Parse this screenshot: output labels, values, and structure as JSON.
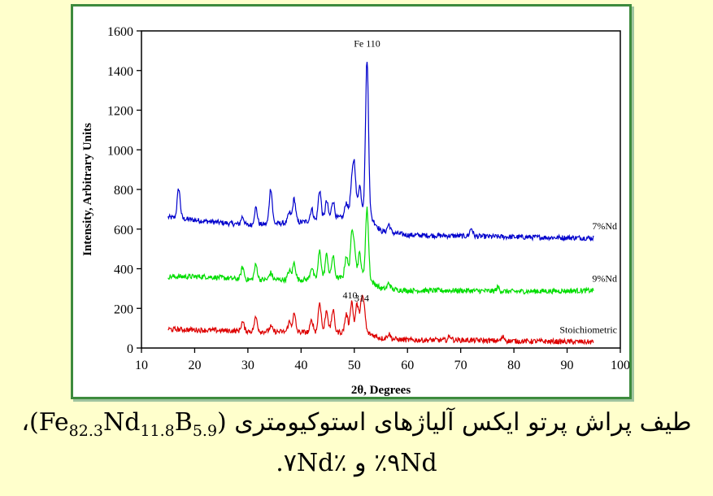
{
  "chart_data": {
    "type": "line",
    "title": "",
    "xlabel": "2θ, Degrees",
    "ylabel": "Intensity, Arbitrary Units",
    "xlim": [
      10,
      100
    ],
    "ylim": [
      0,
      1600
    ],
    "xticks": [
      "10",
      "20",
      "30",
      "40",
      "50",
      "60",
      "70",
      "80",
      "90",
      "100"
    ],
    "yticks": [
      "0",
      "200",
      "400",
      "600",
      "800",
      "1000",
      "1200",
      "1400",
      "1600"
    ],
    "grid": false,
    "series": [
      {
        "name": "7%Nd",
        "color": "#0000cc",
        "baseline": [
          [
            15,
            660
          ],
          [
            22,
            640
          ],
          [
            30,
            620
          ],
          [
            40,
            635
          ],
          [
            48,
            660
          ],
          [
            52,
            700
          ],
          [
            55,
            590
          ],
          [
            60,
            570
          ],
          [
            70,
            565
          ],
          [
            80,
            560
          ],
          [
            95,
            555
          ]
        ],
        "peaks": [
          [
            17,
            150
          ],
          [
            29,
            40
          ],
          [
            31.5,
            85
          ],
          [
            34.3,
            180
          ],
          [
            37.8,
            50
          ],
          [
            38.7,
            120
          ],
          [
            42,
            60
          ],
          [
            43.5,
            150
          ],
          [
            44.8,
            90
          ],
          [
            46,
            90
          ],
          [
            48.5,
            70
          ],
          [
            49.5,
            130
          ],
          [
            50,
            240
          ],
          [
            51,
            130
          ],
          [
            52.4,
            770
          ],
          [
            56.5,
            40
          ],
          [
            72,
            40
          ]
        ]
      },
      {
        "name": "9%Nd",
        "color": "#00dd00",
        "baseline": [
          [
            15,
            360
          ],
          [
            22,
            360
          ],
          [
            30,
            345
          ],
          [
            40,
            345
          ],
          [
            48,
            355
          ],
          [
            52,
            360
          ],
          [
            55,
            300
          ],
          [
            60,
            290
          ],
          [
            70,
            290
          ],
          [
            80,
            285
          ],
          [
            95,
            290
          ]
        ],
        "peaks": [
          [
            29,
            60
          ],
          [
            31.5,
            75
          ],
          [
            34.3,
            35
          ],
          [
            37.8,
            45
          ],
          [
            38.7,
            85
          ],
          [
            42,
            60
          ],
          [
            43.5,
            140
          ],
          [
            44.8,
            120
          ],
          [
            46,
            110
          ],
          [
            48.5,
            110
          ],
          [
            49.5,
            190
          ],
          [
            50,
            150
          ],
          [
            51,
            120
          ],
          [
            52.4,
            350
          ],
          [
            56.5,
            30
          ],
          [
            77,
            20
          ]
        ]
      },
      {
        "name": "Stoichiometric",
        "color": "#dd0000",
        "baseline": [
          [
            15,
            95
          ],
          [
            22,
            90
          ],
          [
            30,
            85
          ],
          [
            40,
            80
          ],
          [
            48,
            80
          ],
          [
            52,
            80
          ],
          [
            55,
            50
          ],
          [
            60,
            40
          ],
          [
            70,
            40
          ],
          [
            80,
            35
          ],
          [
            95,
            30
          ]
        ],
        "peaks": [
          [
            29,
            45
          ],
          [
            31.5,
            70
          ],
          [
            34.3,
            25
          ],
          [
            37.8,
            50
          ],
          [
            38.7,
            90
          ],
          [
            42,
            60
          ],
          [
            43.5,
            150
          ],
          [
            44.8,
            110
          ],
          [
            46,
            110
          ],
          [
            48.5,
            90
          ],
          [
            49.5,
            155
          ],
          [
            50.5,
            140
          ],
          [
            51.3,
            135
          ],
          [
            51.8,
            125
          ],
          [
            56.5,
            25
          ],
          [
            68,
            20
          ],
          [
            78,
            20
          ]
        ]
      }
    ],
    "annotations": [
      {
        "text": "Fe  110",
        "x": 52.4,
        "y": 1520
      },
      {
        "text": "410",
        "x": 49.2,
        "y": 250
      },
      {
        "text": "314",
        "x": 51.4,
        "y": 235
      }
    ]
  },
  "caption": {
    "line1_pre": "طیف پراش پرتو ایکس آلیاژهای استوکیومتری (Fe",
    "sub1": "82.3",
    "mid1": "Nd",
    "sub2": "11.8",
    "mid2": "B",
    "sub3": "5.9",
    "line1_post": ")،",
    "line2": "٪۹Nd و ٪۷Nd."
  }
}
